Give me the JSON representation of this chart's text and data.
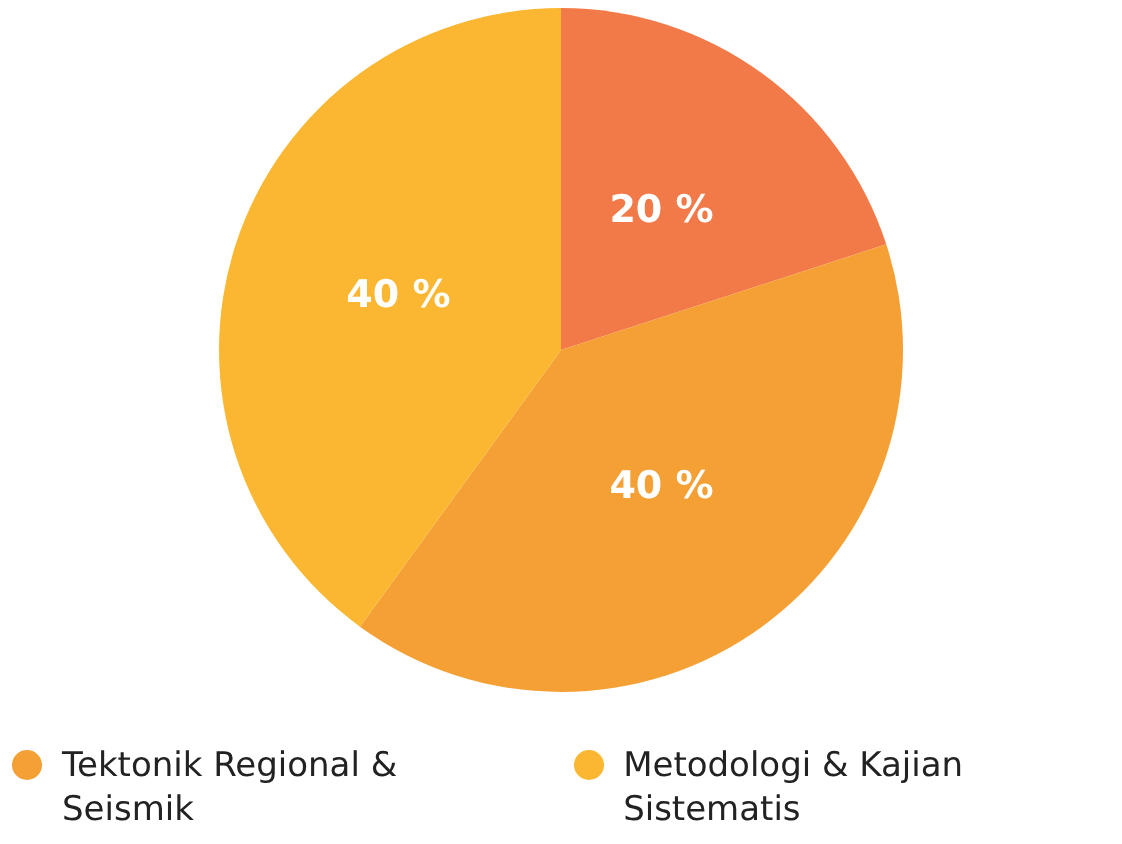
{
  "chart_data": {
    "type": "pie",
    "categories": [
      null,
      "Tektonik Regional & Seismik",
      "Metodologi & Kajian Sistematis"
    ],
    "values": [
      20,
      40,
      40
    ],
    "colors": [
      "#f27a48",
      "#f4a035",
      "#fbb731"
    ],
    "value_labels": [
      "20 %",
      "40 %",
      "40 %"
    ],
    "legend": "bottom"
  }
}
